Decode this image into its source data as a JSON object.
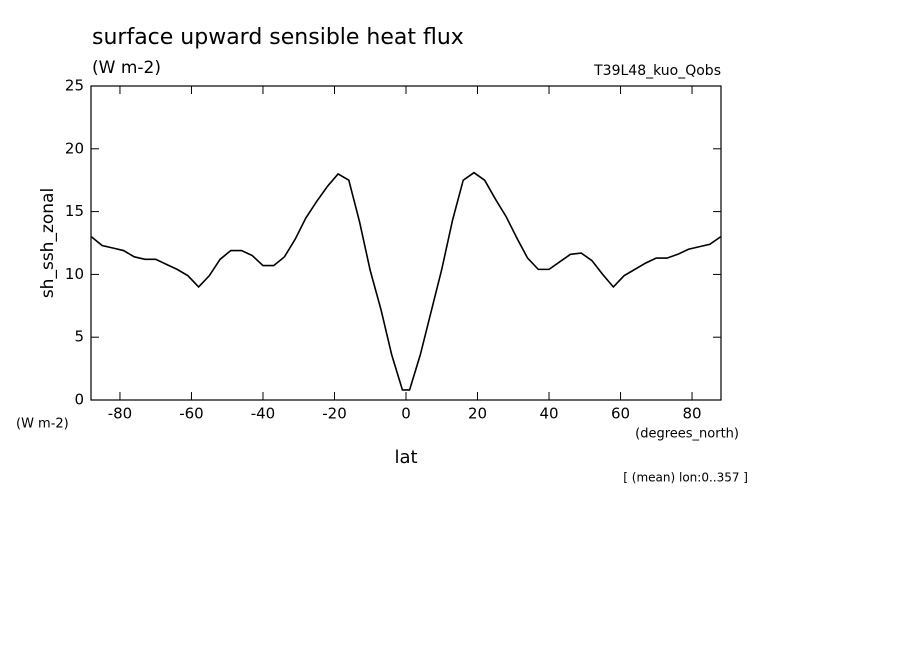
{
  "chart_data": {
    "type": "line",
    "title": "surface upward sensible heat flux",
    "subtitle": "(W m-2)",
    "experiment": "T39L48_kuo_Qobs",
    "ylabel": "sh_ssh_zonal",
    "yunits": "(W m-2)",
    "xunits": "(degrees_north)",
    "xlabel": "lat",
    "note": "[ (mean) lon:0..357 ]",
    "x": [
      -88,
      -85,
      -82,
      -79,
      -76,
      -73,
      -70,
      -67,
      -64,
      -61,
      -58,
      -55,
      -52,
      -49,
      -46,
      -43,
      -40,
      -37,
      -34,
      -31,
      -28,
      -25,
      -22,
      -19,
      -16,
      -13,
      -10,
      -7,
      -4,
      -1,
      1,
      4,
      7,
      10,
      13,
      16,
      19,
      22,
      25,
      28,
      31,
      34,
      37,
      40,
      43,
      46,
      49,
      52,
      55,
      58,
      61,
      64,
      67,
      70,
      73,
      76,
      79,
      82,
      85,
      88
    ],
    "series": [
      {
        "name": "sh_ssh_zonal",
        "color": "#000000",
        "values": [
          13.0,
          12.3,
          12.1,
          11.9,
          11.4,
          11.2,
          11.2,
          10.8,
          10.4,
          9.9,
          9.0,
          9.9,
          11.2,
          11.9,
          11.9,
          11.5,
          10.7,
          10.7,
          11.4,
          12.8,
          14.5,
          15.8,
          17.0,
          18.0,
          17.5,
          14.2,
          10.3,
          7.2,
          3.6,
          0.8,
          0.8,
          3.6,
          7.0,
          10.4,
          14.3,
          17.5,
          18.1,
          17.5,
          16.0,
          14.6,
          12.9,
          11.3,
          10.4,
          10.4,
          11.0,
          11.6,
          11.7,
          11.1,
          10.0,
          9.0,
          9.9,
          10.4,
          10.9,
          11.3,
          11.3,
          11.6,
          12.0,
          12.2,
          12.4,
          13.0
        ]
      }
    ],
    "xlim": [
      -88.1,
      88.1
    ],
    "ylim": [
      0,
      25
    ],
    "xticks": [
      -80,
      -60,
      -40,
      -20,
      0,
      20,
      40,
      60,
      80
    ],
    "yticks": [
      0,
      5,
      10,
      15,
      20,
      25
    ]
  }
}
